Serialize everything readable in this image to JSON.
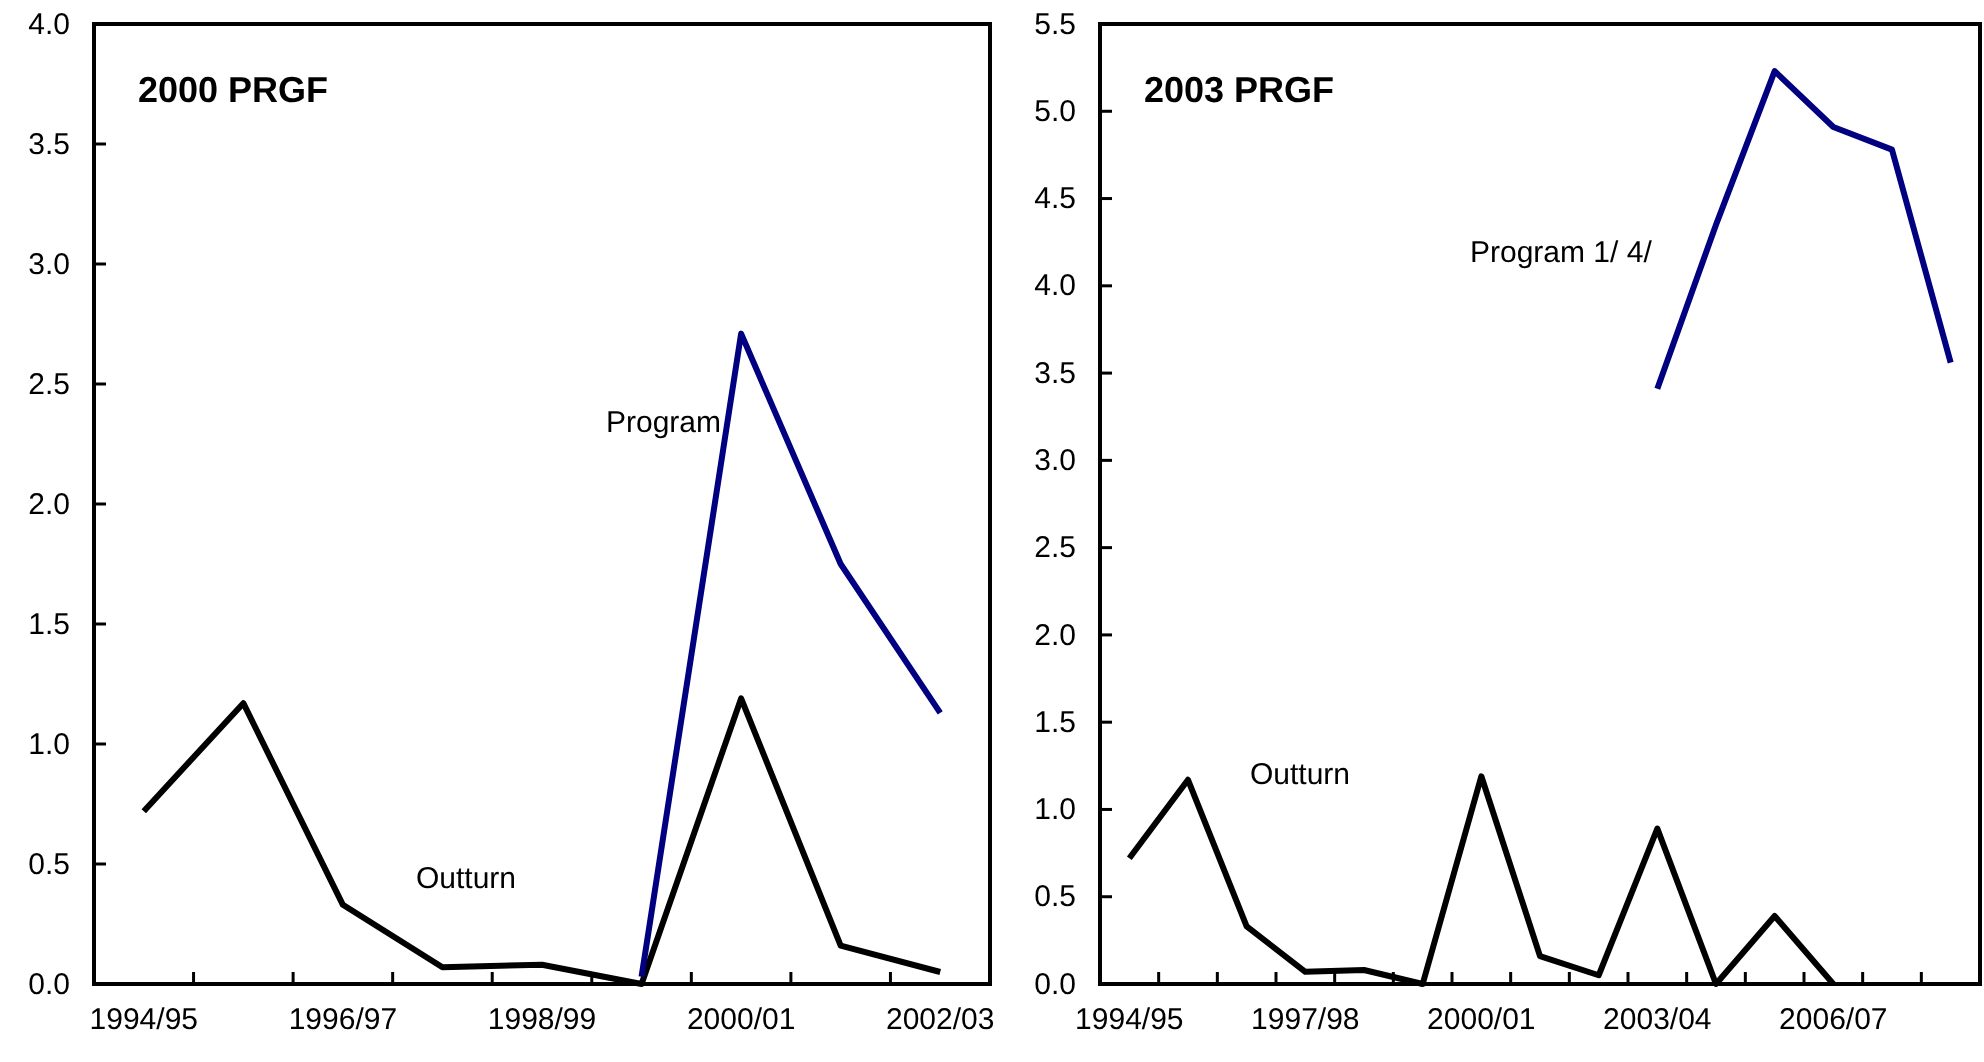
{
  "chart_data": [
    {
      "type": "line",
      "title": "2000 PRGF",
      "categories": [
        "1994/95",
        null,
        "1996/97",
        null,
        "1998/99",
        null,
        "2000/01",
        null,
        "2002/03"
      ],
      "series": [
        {
          "name": "Outturn",
          "color": "#000000",
          "values": [
            0.72,
            1.17,
            0.33,
            0.07,
            0.08,
            0.0,
            1.19,
            0.16,
            0.05
          ]
        },
        {
          "name": "Program",
          "color": "#000080",
          "values": [
            null,
            null,
            null,
            null,
            null,
            0.03,
            2.71,
            1.75,
            1.13
          ]
        }
      ],
      "ylim": [
        0,
        4
      ],
      "yticks": [
        {
          "value": 0,
          "label": "0.0"
        },
        0.5,
        {
          "value": 1,
          "label": "1.0"
        },
        1.5,
        {
          "value": 2,
          "label": "2.0"
        },
        2.5,
        {
          "value": 3,
          "label": "3.0"
        },
        3.5,
        {
          "value": 4,
          "label": "4.0"
        }
      ],
      "grid": false,
      "legend": false,
      "marker": "none",
      "line_style": "solid"
    },
    {
      "type": "line",
      "title": "2003 PRGF",
      "categories": [
        "1994/95",
        null,
        null,
        "1997/98",
        null,
        null,
        "2000/01",
        null,
        null,
        "2003/04",
        null,
        null,
        "2006/07",
        null,
        null
      ],
      "series": [
        {
          "name": "Outturn",
          "color": "#000000",
          "values": [
            0.72,
            1.17,
            0.33,
            0.07,
            0.08,
            0.0,
            1.19,
            0.16,
            0.05,
            0.89,
            0.0,
            0.39,
            0.0,
            null,
            null
          ]
        },
        {
          "name": "Program 1/ 4/",
          "color": "#000080",
          "values": [
            null,
            null,
            null,
            null,
            null,
            null,
            null,
            null,
            null,
            3.41,
            4.35,
            5.23,
            4.91,
            4.78,
            3.56
          ]
        }
      ],
      "ylim": [
        0,
        5.5
      ],
      "yticks": [
        {
          "value": 0,
          "label": "0.0"
        },
        0.5,
        {
          "value": 1,
          "label": "1.0"
        },
        1.5,
        {
          "value": 2,
          "label": "2.0"
        },
        2.5,
        {
          "value": 3,
          "label": "3.0"
        },
        3.5,
        {
          "value": 4,
          "label": "4.0"
        },
        4.5,
        {
          "value": 5,
          "label": "5.0"
        },
        5.5
      ],
      "grid": false,
      "legend": false,
      "marker": "none",
      "line_style": "solid"
    }
  ]
}
